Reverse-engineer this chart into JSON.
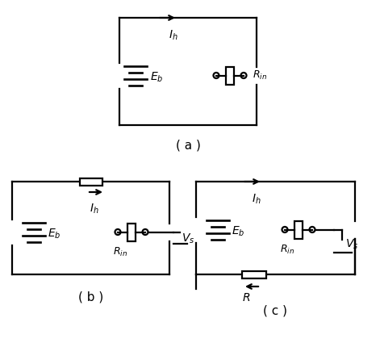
{
  "bg_color": "#ffffff",
  "line_color": "#000000",
  "line_width": 1.6,
  "label_a": "( a )",
  "label_b": "( b )",
  "label_c": "( c )",
  "Eb_label": "$E_b$",
  "Ih_label": "$I_h$",
  "Rin_label": "$R_{in}$",
  "R_label": "$R$",
  "Vs_label": "$V_s$"
}
